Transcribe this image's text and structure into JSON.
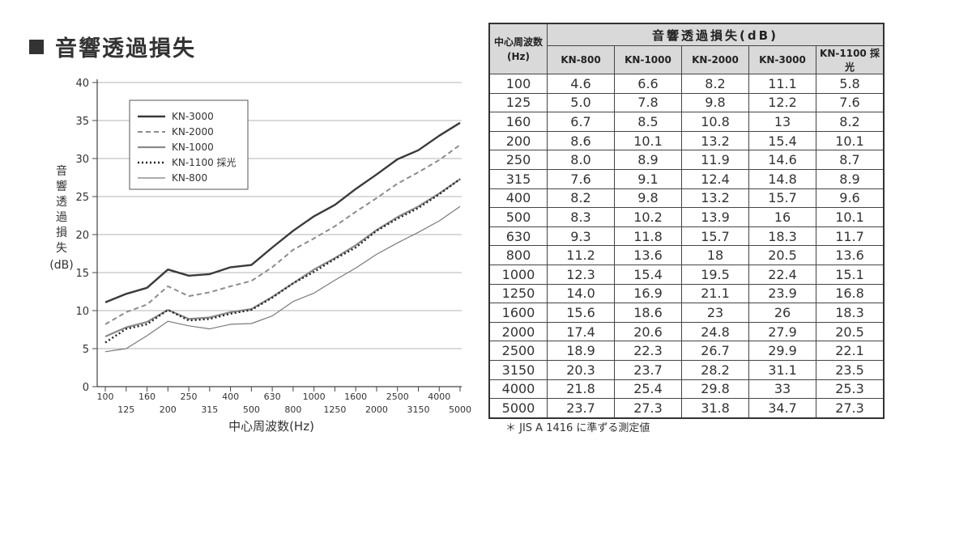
{
  "heading": {
    "title": "音響透過損失"
  },
  "chart_data": {
    "type": "line",
    "categories": [
      "100",
      "125",
      "160",
      "200",
      "250",
      "315",
      "400",
      "500",
      "630",
      "800",
      "1000",
      "1250",
      "1600",
      "2000",
      "2500",
      "3150",
      "4000",
      "5000"
    ],
    "ylim": [
      0,
      40
    ],
    "yticks": [
      0,
      5,
      10,
      15,
      20,
      25,
      30,
      35,
      40
    ],
    "xlabel": "中心周波数(Hz)",
    "ylabel_chars": [
      "音",
      "響",
      "透",
      "過",
      "損",
      "失"
    ],
    "ylabel_unit": "(dB)",
    "grid": true,
    "legend_placement": "top-left",
    "series": [
      {
        "name": "KN-3000",
        "style": "solid-thick",
        "color": "#3a3a3a",
        "values": [
          11.1,
          12.2,
          13,
          15.4,
          14.6,
          14.8,
          15.7,
          16,
          18.3,
          20.5,
          22.4,
          23.9,
          26,
          27.9,
          29.9,
          31.1,
          33,
          34.7
        ]
      },
      {
        "name": "KN-2000",
        "style": "dashed",
        "color": "#8c8c8c",
        "values": [
          8.2,
          9.8,
          10.8,
          13.2,
          11.9,
          12.4,
          13.2,
          13.9,
          15.7,
          18,
          19.5,
          21.1,
          23,
          24.8,
          26.7,
          28.2,
          29.8,
          31.8
        ]
      },
      {
        "name": "KN-1000",
        "style": "solid-gray",
        "color": "#8a8a8a",
        "values": [
          6.6,
          7.8,
          8.5,
          10.1,
          8.9,
          9.1,
          9.8,
          10.2,
          11.8,
          13.6,
          15.4,
          16.9,
          18.6,
          20.6,
          22.3,
          23.7,
          25.4,
          27.3
        ]
      },
      {
        "name": "KN-1100 採光",
        "style": "dotted",
        "color": "#222222",
        "values": [
          5.8,
          7.6,
          8.2,
          10.1,
          8.7,
          8.9,
          9.6,
          10.1,
          11.7,
          13.6,
          15.1,
          16.8,
          18.3,
          20.5,
          22.1,
          23.5,
          25.3,
          27.3
        ]
      },
      {
        "name": "KN-800",
        "style": "thin",
        "color": "#7a7a7a",
        "values": [
          4.6,
          5,
          6.7,
          8.6,
          8,
          7.6,
          8.2,
          8.3,
          9.3,
          11.2,
          12.3,
          14,
          15.6,
          17.4,
          18.9,
          20.3,
          21.8,
          23.7
        ]
      }
    ]
  },
  "table": {
    "freq_header": [
      "中心周波数",
      "(Hz)"
    ],
    "group_header": "音響透過損失(dB)",
    "models": [
      "KN-800",
      "KN-1000",
      "KN-2000",
      "KN-3000",
      "KN-1100 採光"
    ],
    "rows": [
      [
        "100",
        "4.6",
        "6.6",
        "8.2",
        "11.1",
        "5.8"
      ],
      [
        "125",
        "5.0",
        "7.8",
        "9.8",
        "12.2",
        "7.6"
      ],
      [
        "160",
        "6.7",
        "8.5",
        "10.8",
        "13",
        "8.2"
      ],
      [
        "200",
        "8.6",
        "10.1",
        "13.2",
        "15.4",
        "10.1"
      ],
      [
        "250",
        "8.0",
        "8.9",
        "11.9",
        "14.6",
        "8.7"
      ],
      [
        "315",
        "7.6",
        "9.1",
        "12.4",
        "14.8",
        "8.9"
      ],
      [
        "400",
        "8.2",
        "9.8",
        "13.2",
        "15.7",
        "9.6"
      ],
      [
        "500",
        "8.3",
        "10.2",
        "13.9",
        "16",
        "10.1"
      ],
      [
        "630",
        "9.3",
        "11.8",
        "15.7",
        "18.3",
        "11.7"
      ],
      [
        "800",
        "11.2",
        "13.6",
        "18",
        "20.5",
        "13.6"
      ],
      [
        "1000",
        "12.3",
        "15.4",
        "19.5",
        "22.4",
        "15.1"
      ],
      [
        "1250",
        "14.0",
        "16.9",
        "21.1",
        "23.9",
        "16.8"
      ],
      [
        "1600",
        "15.6",
        "18.6",
        "23",
        "26",
        "18.3"
      ],
      [
        "2000",
        "17.4",
        "20.6",
        "24.8",
        "27.9",
        "20.5"
      ],
      [
        "2500",
        "18.9",
        "22.3",
        "26.7",
        "29.9",
        "22.1"
      ],
      [
        "3150",
        "20.3",
        "23.7",
        "28.2",
        "31.1",
        "23.5"
      ],
      [
        "4000",
        "21.8",
        "25.4",
        "29.8",
        "33",
        "25.3"
      ],
      [
        "5000",
        "23.7",
        "27.3",
        "31.8",
        "34.7",
        "27.3"
      ]
    ],
    "note": "＊ JIS A 1416 に準ずる測定値"
  }
}
